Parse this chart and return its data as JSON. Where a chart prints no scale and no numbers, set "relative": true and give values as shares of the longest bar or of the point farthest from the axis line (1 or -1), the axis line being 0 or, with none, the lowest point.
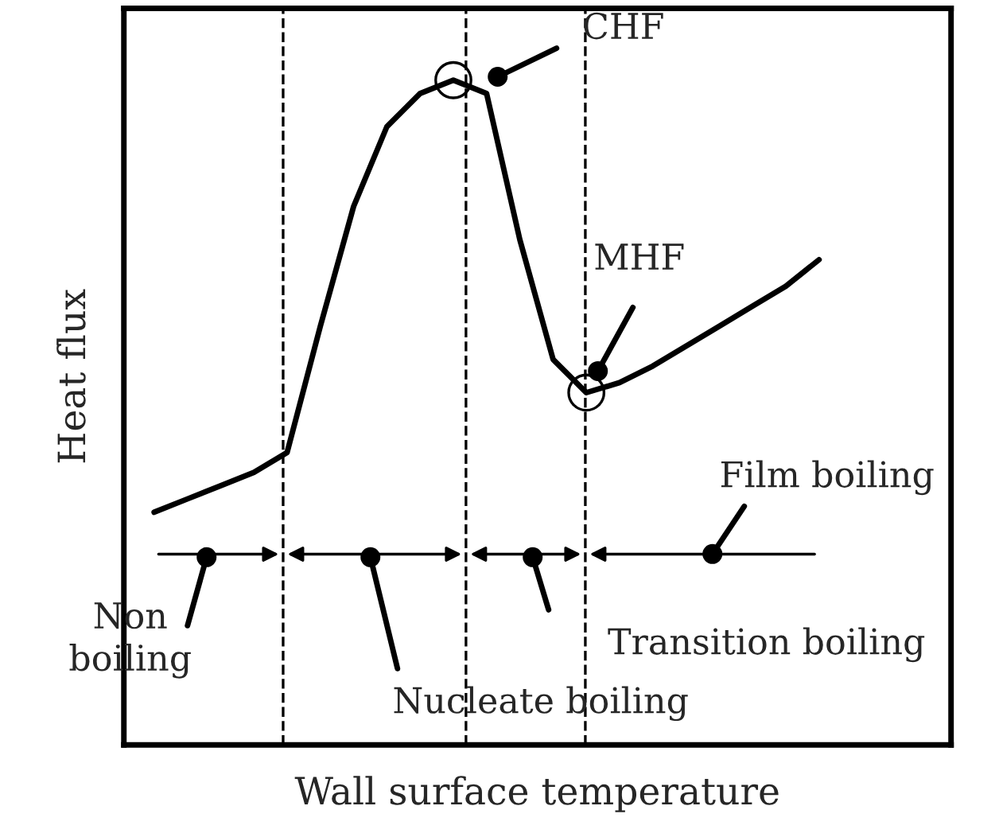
{
  "chart_data": {
    "type": "line",
    "relative": true,
    "xlabel": "Wall surface temperature",
    "ylabel": "Heat flux",
    "categories": [
      null,
      null,
      null,
      null,
      null,
      null,
      null,
      null,
      null,
      null,
      null,
      null,
      null,
      null,
      null,
      null,
      null,
      null,
      null,
      null,
      null
    ],
    "series": [
      {
        "color": "#000000",
        "values": [
          0.35,
          0.37,
          0.39,
          0.41,
          0.44,
          0.63,
          0.81,
          0.93,
          0.98,
          1.0,
          0.98,
          0.76,
          0.58,
          0.53,
          0.545,
          0.57,
          0.6,
          0.63,
          0.66,
          0.69,
          0.73
        ]
      }
    ],
    "annotations": [
      "CHF",
      "MHF",
      "Film boiling",
      "Non\nboiling",
      "Nucleate boiling",
      "Transition boiling"
    ],
    "legend": false,
    "marker": "none",
    "line_style": "solid"
  }
}
